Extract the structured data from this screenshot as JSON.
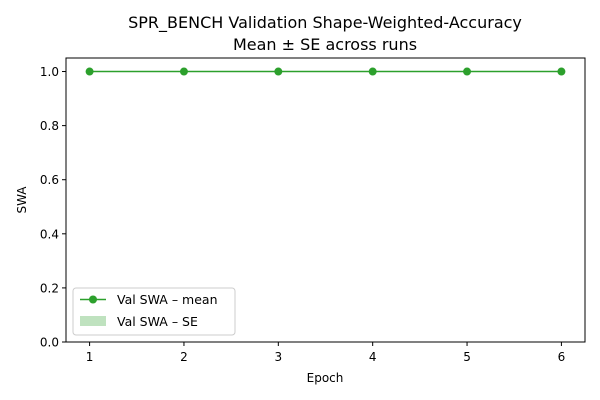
{
  "chart_data": {
    "type": "line",
    "title": "SPR_BENCH Validation Shape-Weighted-Accuracy",
    "subtitle": "Mean ± SE across runs",
    "xlabel": "Epoch",
    "ylabel": "SWA",
    "x": [
      1,
      2,
      3,
      4,
      5,
      6
    ],
    "x_tick_labels": [
      "1",
      "2",
      "3",
      "4",
      "5",
      "6"
    ],
    "y_ticks": [
      0.0,
      0.2,
      0.4,
      0.6,
      0.8,
      1.0
    ],
    "y_tick_labels": [
      "0.0",
      "0.2",
      "0.4",
      "0.6",
      "0.8",
      "1.0"
    ],
    "xlim": [
      0.75,
      6.25
    ],
    "ylim": [
      0.0,
      1.05
    ],
    "grid": false,
    "legend_position": "lower-left",
    "series": [
      {
        "name": "Val SWA – mean",
        "values": [
          1.0,
          1.0,
          1.0,
          1.0,
          1.0,
          1.0
        ],
        "color": "#2ca02c",
        "marker": "circle"
      },
      {
        "name": "Val SWA – SE",
        "lower": [
          1.0,
          1.0,
          1.0,
          1.0,
          1.0,
          1.0
        ],
        "upper": [
          1.0,
          1.0,
          1.0,
          1.0,
          1.0,
          1.0
        ],
        "color": "#2ca02c",
        "kind": "band"
      }
    ]
  }
}
